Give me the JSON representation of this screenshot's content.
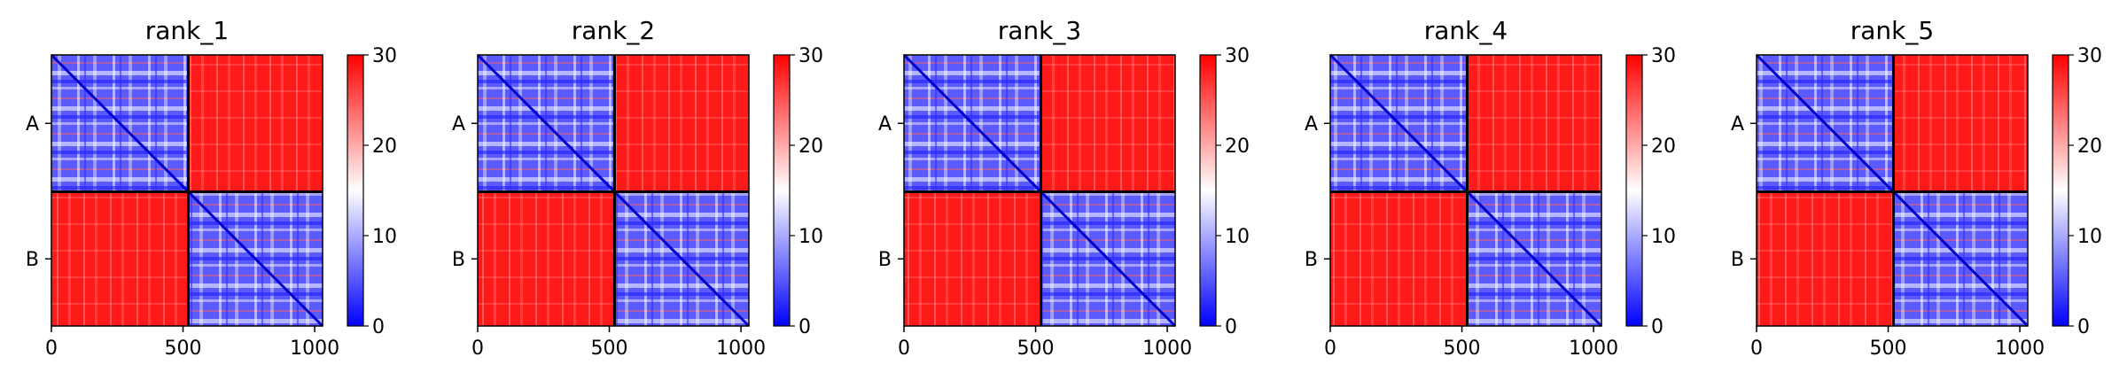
{
  "chart_data": [
    {
      "type": "heatmap",
      "title": "rank_1",
      "chain_labels": [
        "A",
        "B"
      ],
      "chain_boundary": 520,
      "matrix_size": 1030,
      "xticks": [
        0,
        500,
        1000
      ],
      "colorbar": {
        "min": 0,
        "max": 30,
        "ticks": [
          0,
          10,
          20,
          30
        ],
        "colors": [
          "#0000ff",
          "#ffffff",
          "#ff0000"
        ]
      }
    },
    {
      "type": "heatmap",
      "title": "rank_2",
      "chain_labels": [
        "A",
        "B"
      ],
      "chain_boundary": 520,
      "matrix_size": 1030,
      "xticks": [
        0,
        500,
        1000
      ],
      "colorbar": {
        "min": 0,
        "max": 30,
        "ticks": [
          0,
          10,
          20,
          30
        ],
        "colors": [
          "#0000ff",
          "#ffffff",
          "#ff0000"
        ]
      }
    },
    {
      "type": "heatmap",
      "title": "rank_3",
      "chain_labels": [
        "A",
        "B"
      ],
      "chain_boundary": 520,
      "matrix_size": 1030,
      "xticks": [
        0,
        500,
        1000
      ],
      "colorbar": {
        "min": 0,
        "max": 30,
        "ticks": [
          0,
          10,
          20,
          30
        ],
        "colors": [
          "#0000ff",
          "#ffffff",
          "#ff0000"
        ]
      }
    },
    {
      "type": "heatmap",
      "title": "rank_4",
      "chain_labels": [
        "A",
        "B"
      ],
      "chain_boundary": 520,
      "matrix_size": 1030,
      "xticks": [
        0,
        500,
        1000
      ],
      "colorbar": {
        "min": 0,
        "max": 30,
        "ticks": [
          0,
          10,
          20,
          30
        ],
        "colors": [
          "#0000ff",
          "#ffffff",
          "#ff0000"
        ]
      }
    },
    {
      "type": "heatmap",
      "title": "rank_5",
      "chain_labels": [
        "A",
        "B"
      ],
      "chain_boundary": 520,
      "matrix_size": 1030,
      "xticks": [
        0,
        500,
        1000
      ],
      "colorbar": {
        "min": 0,
        "max": 30,
        "ticks": [
          0,
          10,
          20,
          30
        ],
        "colors": [
          "#0000ff",
          "#ffffff",
          "#ff0000"
        ]
      }
    }
  ]
}
